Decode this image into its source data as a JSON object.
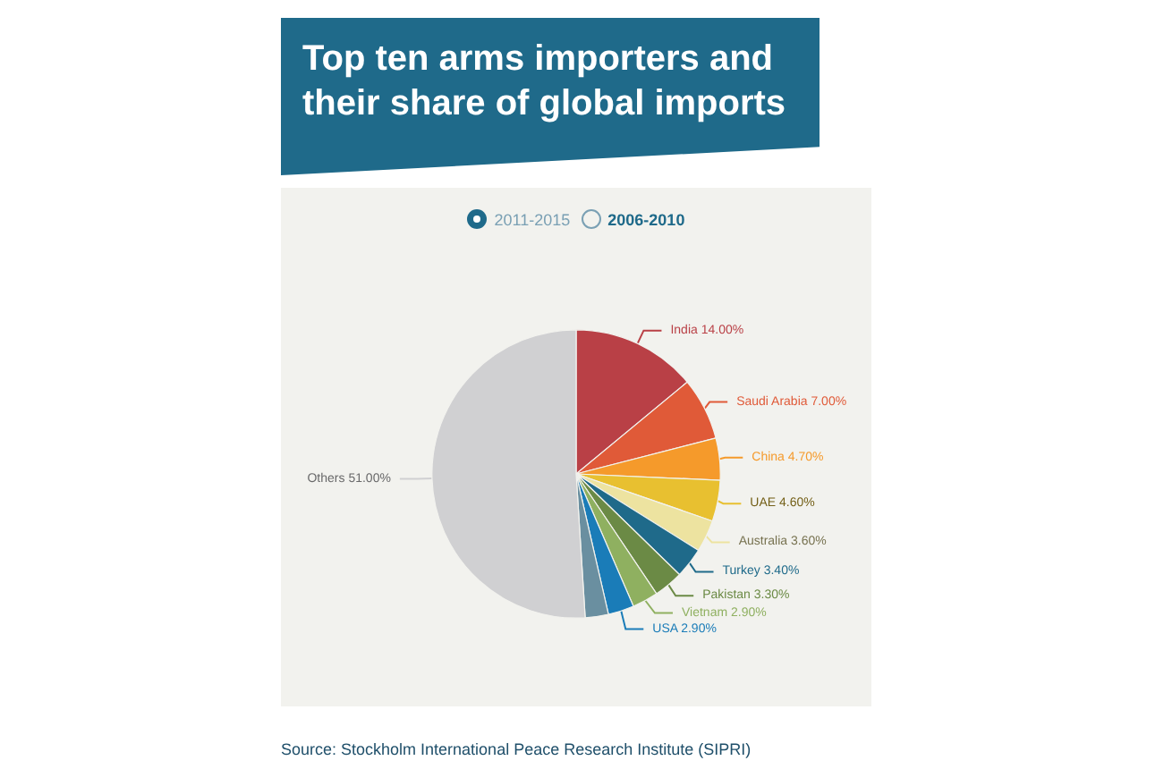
{
  "chart_data": {
    "type": "pie",
    "title": "Top ten arms importers and their share of global imports",
    "categories": [
      "India",
      "Saudi Arabia",
      "China",
      "UAE",
      "Australia",
      "Turkey",
      "Pakistan",
      "Vietnam",
      "USA",
      null,
      "Others"
    ],
    "values": [
      14,
      7,
      4.7,
      4.6,
      3.6,
      3.4,
      3.3,
      2.9,
      2.9,
      2.6,
      51
    ],
    "value_labels": [
      "14.00%",
      "7.00%",
      "4.70%",
      "4.60%",
      "3.60%",
      "3.40%",
      "3.30%",
      "2.90%",
      "2.90%",
      null,
      "51.00%"
    ],
    "colors": [
      "#b94046",
      "#e05a38",
      "#f59a2b",
      "#e8c030",
      "#ede3a0",
      "#1f6a8a",
      "#6b8a45",
      "#8fb060",
      "#1a7cb8",
      "#6a8fa0",
      "#d0d0d2"
    ],
    "annotations": [
      "2011-2015",
      "2006-2010",
      "Source: Stockholm International Peace Research Institute (SIPRI)"
    ],
    "legend": false
  }
}
